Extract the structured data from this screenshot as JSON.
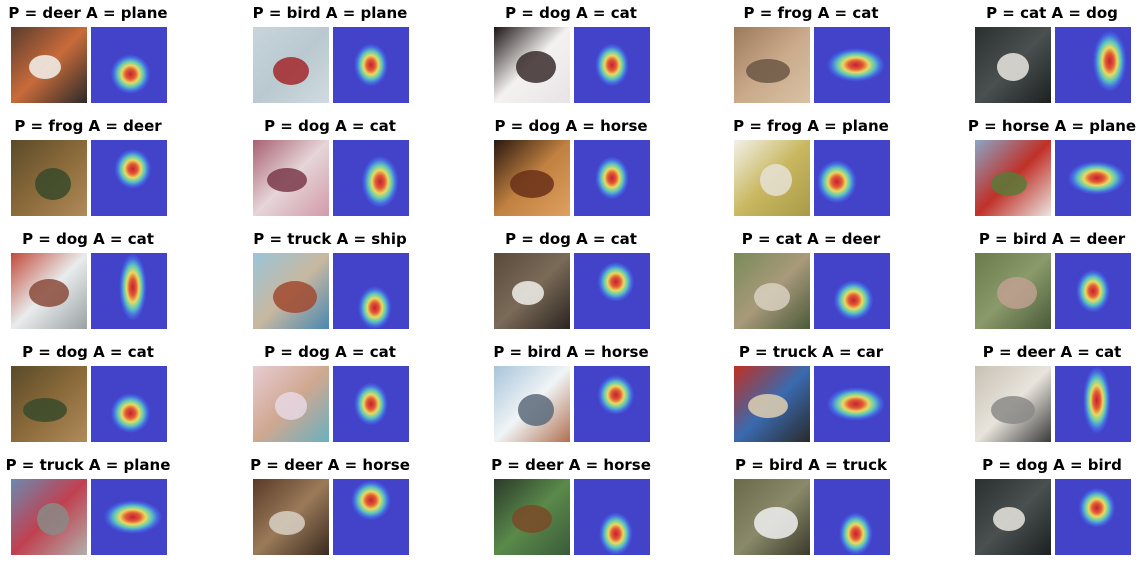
{
  "cells": [
    {
      "title": "P = deer A = plane",
      "photo": "colors",
      "heat": "center-low"
    },
    {
      "title": "P = bird A = plane",
      "photo": "plane-sky",
      "heat": "center"
    },
    {
      "title": "P = dog A = cat",
      "photo": "dark-animal",
      "heat": "center"
    },
    {
      "title": "P = frog A = cat",
      "photo": "tan",
      "heat": "wide"
    },
    {
      "title": "P = cat A = dog",
      "photo": "dark",
      "heat": "right"
    },
    {
      "title": "P = frog A = deer",
      "photo": "foliage",
      "heat": "center-upper"
    },
    {
      "title": "P = dog A = cat",
      "photo": "pink",
      "heat": "right-mid"
    },
    {
      "title": "P = dog A = horse",
      "photo": "brown-horse",
      "heat": "center"
    },
    {
      "title": "P = frog A = plane",
      "photo": "pale",
      "heat": "left"
    },
    {
      "title": "P = horse A = plane",
      "photo": "red-plane",
      "heat": "wide"
    },
    {
      "title": "P = dog A = cat",
      "photo": "red-wall",
      "heat": "vertical"
    },
    {
      "title": "P = truck A = ship",
      "photo": "boat",
      "heat": "bottom"
    },
    {
      "title": "P = dog A = cat",
      "photo": "ground",
      "heat": "center-upper"
    },
    {
      "title": "P = cat A = deer",
      "photo": "deer",
      "heat": "center-low"
    },
    {
      "title": "P = bird A = deer",
      "photo": "green",
      "heat": "center"
    },
    {
      "title": "P = dog A = cat",
      "photo": "foliage",
      "heat": "center-low"
    },
    {
      "title": "P = dog A = cat",
      "photo": "pink-cat",
      "heat": "center"
    },
    {
      "title": "P = bird A = horse",
      "photo": "snow",
      "heat": "center-upper"
    },
    {
      "title": "P = truck A = car",
      "photo": "red-car",
      "heat": "wide"
    },
    {
      "title": "P = deer A = cat",
      "photo": "pale-grey",
      "heat": "vertical"
    },
    {
      "title": "P = truck A = plane",
      "photo": "road",
      "heat": "wide"
    },
    {
      "title": "P = deer A = horse",
      "photo": "brown",
      "heat": "top"
    },
    {
      "title": "P = deer A = horse",
      "photo": "field",
      "heat": "bottom"
    },
    {
      "title": "P = bird A = truck",
      "photo": "olive",
      "heat": "bottom"
    },
    {
      "title": "P = dog A = bird",
      "photo": "dark",
      "heat": "center-upper"
    }
  ]
}
